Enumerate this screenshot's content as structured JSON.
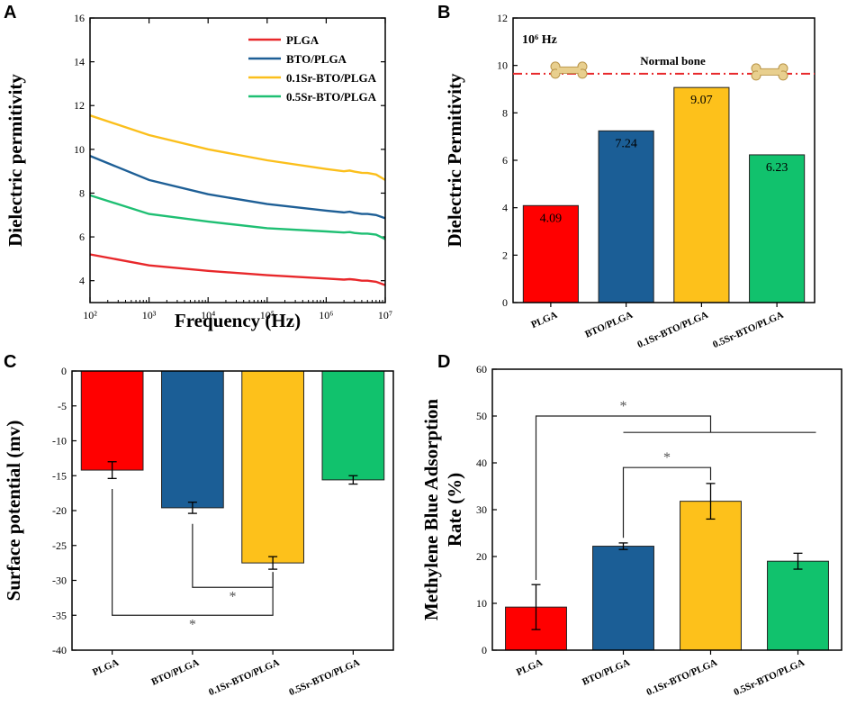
{
  "chart_data": [
    {
      "panel": "A",
      "type": "line",
      "xscale": "log",
      "xlabel": "Frequency (Hz)",
      "ylabel": "Dielectric permitivity",
      "xlim": [
        100,
        10000000
      ],
      "ylim": [
        3,
        16
      ],
      "xtick_labels": [
        "10²",
        "10³",
        "10⁴",
        "10⁵",
        "10⁶",
        "10⁷"
      ],
      "xtick_values": [
        100,
        1000,
        10000,
        100000,
        1000000,
        10000000
      ],
      "yticks": [
        4,
        6,
        8,
        10,
        12,
        14,
        16
      ],
      "legend": "top-right",
      "x": [
        100,
        1000,
        10000,
        100000,
        1000000,
        2000000,
        2500000,
        3000000,
        4000000,
        5000000,
        7000000,
        10000000
      ],
      "series": [
        {
          "name": "PLGA",
          "color": "#e8282b",
          "values": [
            5.2,
            4.7,
            4.45,
            4.25,
            4.1,
            4.05,
            4.07,
            4.05,
            4.0,
            4.0,
            3.95,
            3.8
          ]
        },
        {
          "name": "BTO/PLGA",
          "color": "#1e5f96",
          "values": [
            9.7,
            8.6,
            7.95,
            7.5,
            7.2,
            7.12,
            7.15,
            7.1,
            7.05,
            7.05,
            7.0,
            6.85
          ]
        },
        {
          "name": "0.1Sr-BTO/PLGA",
          "color": "#fbbf1c",
          "values": [
            11.55,
            10.65,
            10.0,
            9.5,
            9.1,
            9.0,
            9.03,
            8.98,
            8.93,
            8.92,
            8.85,
            8.6
          ]
        },
        {
          "name": "0.5Sr-BTO/PLGA",
          "color": "#1fbf73",
          "values": [
            7.9,
            7.05,
            6.7,
            6.4,
            6.25,
            6.2,
            6.22,
            6.18,
            6.15,
            6.15,
            6.1,
            5.9
          ]
        }
      ]
    },
    {
      "panel": "B",
      "type": "bar",
      "annotation": "10⁶ Hz",
      "reference_line": {
        "label": "Normal bone",
        "value": 9.65,
        "color": "#e8282b"
      },
      "ylabel": "Dielectric Permitivity",
      "ylim": [
        0,
        12
      ],
      "yticks": [
        0,
        2,
        4,
        6,
        8,
        10,
        12
      ],
      "categories": [
        "PLGA",
        "BTO/PLGA",
        "0.1Sr-BTO/PLGA",
        "0.5Sr-BTO/PLGA"
      ],
      "values": [
        4.09,
        7.24,
        9.07,
        6.23
      ],
      "value_labels": [
        "4.09",
        "7.24",
        "9.07",
        "6.23"
      ],
      "colors": [
        "#ff0000",
        "#1b5e96",
        "#fdc11b",
        "#11c26d"
      ]
    },
    {
      "panel": "C",
      "type": "bar",
      "ylabel": "Surface potential (mv)",
      "ylim": [
        -40,
        0
      ],
      "yticks": [
        0,
        -5,
        -10,
        -15,
        -20,
        -25,
        -30,
        -35,
        -40
      ],
      "categories": [
        "PLGA",
        "BTO/PLGA",
        "0.1Sr-BTO/PLGA",
        "0.5Sr-BTO/PLGA"
      ],
      "values": [
        -14.2,
        -19.6,
        -27.5,
        -15.6
      ],
      "errors": [
        1.2,
        0.8,
        0.9,
        0.6
      ],
      "colors": [
        "#ff0000",
        "#1b5e96",
        "#fdc11b",
        "#11c26d"
      ],
      "significance": [
        {
          "from": 1,
          "to": 2,
          "level": -31,
          "label": "*"
        },
        {
          "from": 0,
          "to": 2,
          "level": -35,
          "label": "*"
        }
      ]
    },
    {
      "panel": "D",
      "type": "bar",
      "ylabel_line1": "Methylene Blue Adsorption",
      "ylabel_line2": "Rate (%)",
      "ylim": [
        0,
        60
      ],
      "yticks": [
        0,
        10,
        20,
        30,
        40,
        50,
        60
      ],
      "categories": [
        "PLGA",
        "BTO/PLGA",
        "0.1Sr-BTO/PLGA",
        "0.5Sr-BTO/PLGA"
      ],
      "values": [
        9.2,
        22.2,
        31.8,
        19.0
      ],
      "errors": [
        4.8,
        0.7,
        3.8,
        1.7
      ],
      "colors": [
        "#ff0000",
        "#1b5e96",
        "#fdc11b",
        "#11c26d"
      ],
      "significance": [
        {
          "from": 1,
          "to": 2,
          "level": 39,
          "label": "*"
        },
        {
          "from": 0,
          "to": 2,
          "level": 50,
          "label": "*"
        }
      ]
    }
  ]
}
